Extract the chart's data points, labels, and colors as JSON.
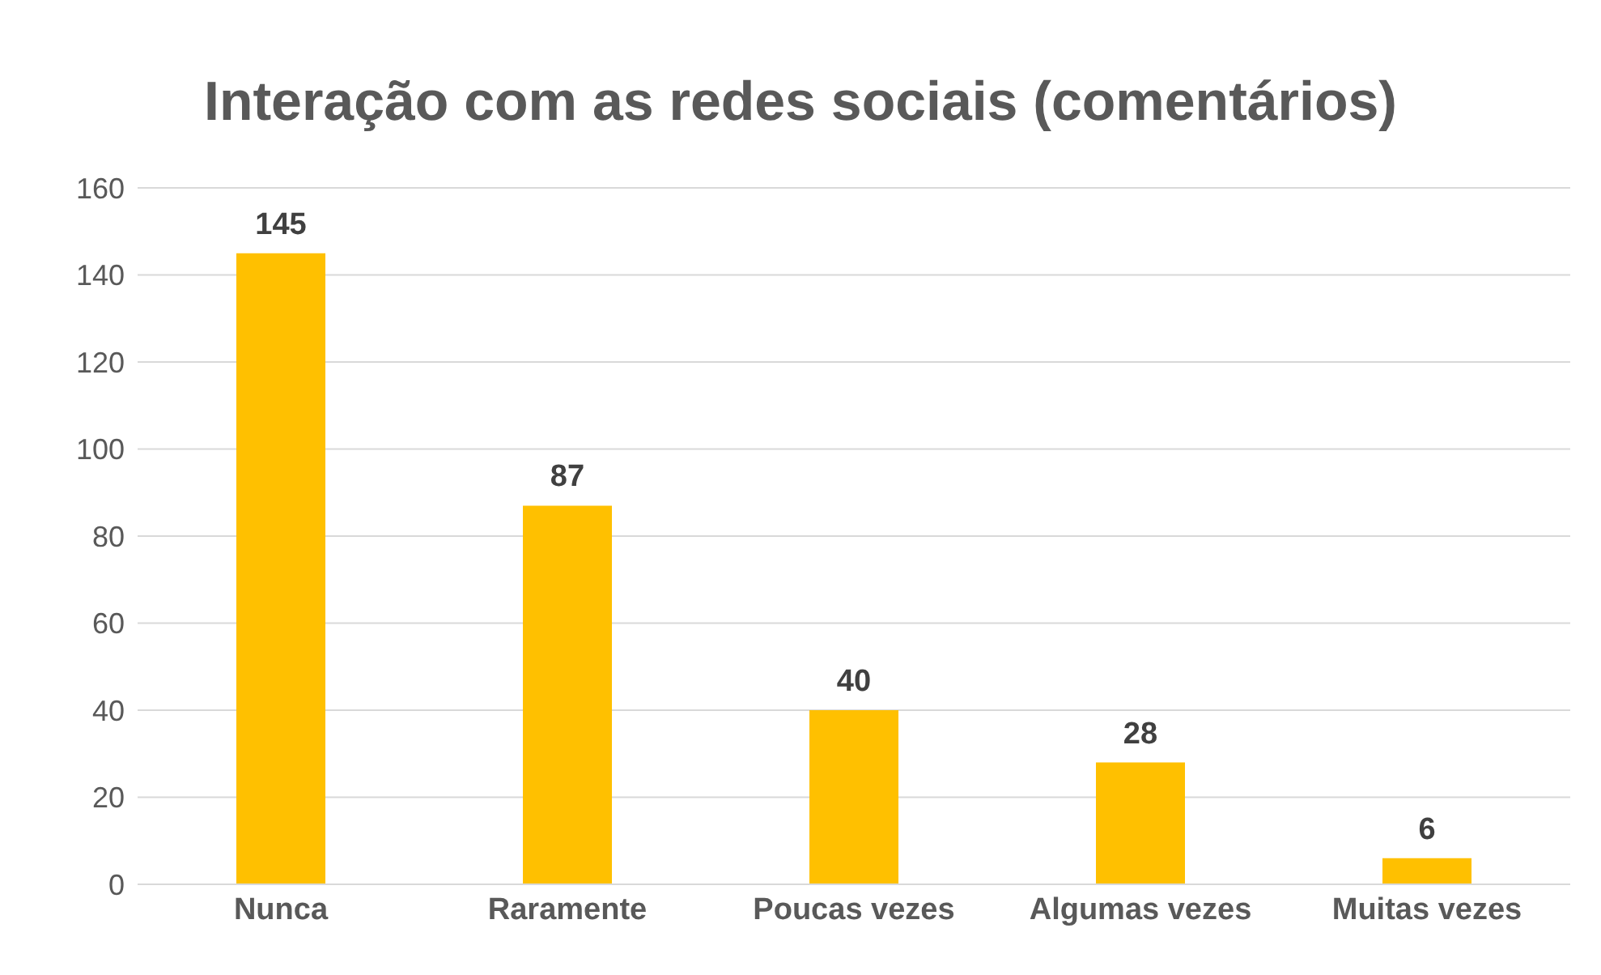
{
  "chart_data": {
    "type": "bar",
    "title": "Interação com as redes sociais (comentários)",
    "categories": [
      "Nunca",
      "Raramente",
      "Poucas vezes",
      "Algumas vezes",
      "Muitas vezes"
    ],
    "values": [
      145,
      87,
      40,
      28,
      6
    ],
    "color": "#ffc000",
    "ylim": [
      0,
      160
    ],
    "yticks": [
      0,
      20,
      40,
      60,
      80,
      100,
      120,
      140,
      160
    ],
    "grid": "y",
    "data_labels": true
  }
}
